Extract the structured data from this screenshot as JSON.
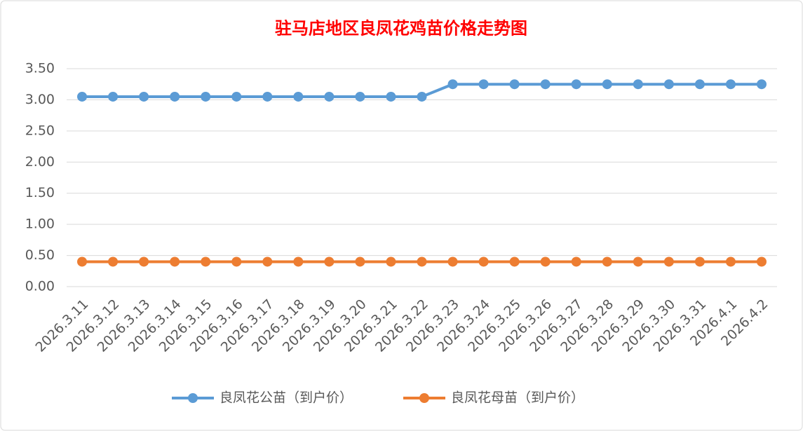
{
  "chart_data": {
    "type": "line",
    "title": "驻马店地区良凤花鸡苗价格走势图",
    "categories": [
      "2026.3.11",
      "2026.3.12",
      "2026.3.13",
      "2026.3.14",
      "2026.3.15",
      "2026.3.16",
      "2026.3.17",
      "2026.3.18",
      "2026.3.19",
      "2026.3.20",
      "2026.3.21",
      "2026.3.22",
      "2026.3.23",
      "2026.3.24",
      "2026.3.25",
      "2026.3.26",
      "2026.3.27",
      "2026.3.28",
      "2026.3.29",
      "2026.3.30",
      "2026.3.31",
      "2026.4.1",
      "2026.4.2"
    ],
    "series": [
      {
        "name": "良凤花公苗（到户价）",
        "color": "#5b9bd5",
        "values": [
          3.05,
          3.05,
          3.05,
          3.05,
          3.05,
          3.05,
          3.05,
          3.05,
          3.05,
          3.05,
          3.05,
          3.05,
          3.25,
          3.25,
          3.25,
          3.25,
          3.25,
          3.25,
          3.25,
          3.25,
          3.25,
          3.25,
          3.25
        ]
      },
      {
        "name": "良凤花母苗（到户价）",
        "color": "#ed7d31",
        "values": [
          0.4,
          0.4,
          0.4,
          0.4,
          0.4,
          0.4,
          0.4,
          0.4,
          0.4,
          0.4,
          0.4,
          0.4,
          0.4,
          0.4,
          0.4,
          0.4,
          0.4,
          0.4,
          0.4,
          0.4,
          0.4,
          0.4,
          0.4
        ]
      }
    ],
    "ylim": [
      0,
      3.5
    ],
    "yticks": [
      {
        "value": 0,
        "label": "0.00"
      },
      {
        "value": 0.5,
        "label": "0.50"
      },
      {
        "value": 1,
        "label": "1.00"
      },
      {
        "value": 1.5,
        "label": "1.50"
      },
      {
        "value": 2,
        "label": "2.00"
      },
      {
        "value": 2.5,
        "label": "2.50"
      },
      {
        "value": 3,
        "label": "3.00"
      },
      {
        "value": 3.5,
        "label": "3.50"
      }
    ],
    "grid": true,
    "legend": "bottom"
  }
}
